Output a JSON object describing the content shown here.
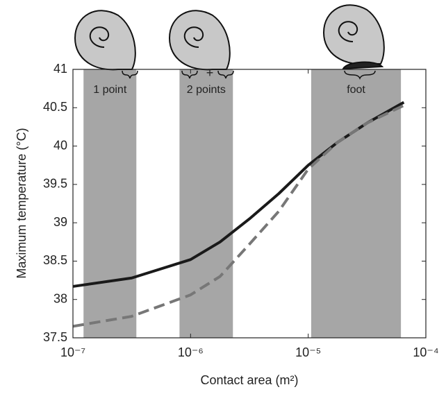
{
  "chart_data": {
    "type": "line",
    "xlabel": "Contact area (m²)",
    "ylabel": "Maximum temperature (°C)",
    "xscale": "log",
    "xlim": [
      1e-07,
      0.0001
    ],
    "xticks": [
      {
        "value": 1e-07,
        "label": "10⁻⁷"
      },
      {
        "value": 1e-06,
        "label": "10⁻⁶"
      },
      {
        "value": 1e-05,
        "label": "10⁻⁵"
      },
      {
        "value": 0.0001,
        "label": "10⁻⁴"
      }
    ],
    "ylim": [
      37.5,
      41
    ],
    "yticks": [
      37.5,
      38,
      38.5,
      39,
      39.5,
      40,
      40.5,
      41
    ],
    "x": [
      1e-07,
      3.16e-07,
      1e-06,
      1.78e-06,
      3.16e-06,
      5.62e-06,
      1e-05,
      1.78e-05,
      3.16e-05,
      6.5e-05
    ],
    "series": [
      {
        "color": "#1a1a1a",
        "dash": false,
        "values": [
          38.17,
          38.28,
          38.52,
          38.75,
          39.05,
          39.38,
          39.75,
          40.05,
          40.3,
          40.57
        ]
      },
      {
        "color": "#777777",
        "dash": true,
        "values": [
          37.65,
          37.78,
          38.06,
          38.3,
          38.72,
          39.15,
          39.7,
          40.05,
          40.3,
          40.53
        ]
      }
    ],
    "bands": [
      {
        "label": "1 point",
        "range": [
          1.23e-07,
          3.46e-07
        ]
      },
      {
        "label": "2 points",
        "range": [
          8.05e-07,
          2.29e-06
        ]
      },
      {
        "label": "foot",
        "range": [
          1.06e-05,
          6.14e-05
        ]
      }
    ],
    "connector": "+",
    "band_color": "#a6a6a6"
  }
}
